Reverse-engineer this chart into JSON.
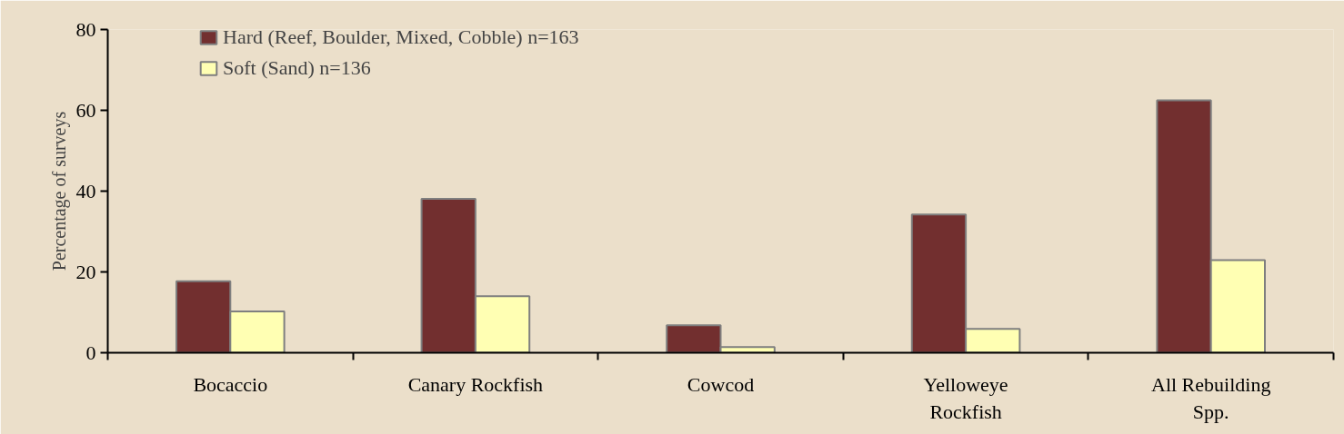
{
  "chart_data": {
    "type": "bar",
    "ylabel": "Percentage of surveys",
    "categories": [
      "Bocaccio",
      "Canary Rockfish",
      "Cowcod",
      "Yelloweye\nRockfish",
      "All Rebuilding\nSpp."
    ],
    "series": [
      {
        "name": "Hard (Reef, Boulder, Mixed, Cobble) n=163",
        "color": "#722f2f",
        "values": [
          17.7,
          38.1,
          6.8,
          34.2,
          62.5
        ]
      },
      {
        "name": "Soft (Sand) n=136",
        "color": "#ffffb3",
        "values": [
          10.2,
          14.0,
          1.4,
          5.9,
          22.9
        ]
      }
    ],
    "ylim": [
      0,
      80
    ],
    "yticks": [
      0,
      20,
      40,
      60,
      80
    ],
    "grid": false,
    "legend": "top left"
  }
}
